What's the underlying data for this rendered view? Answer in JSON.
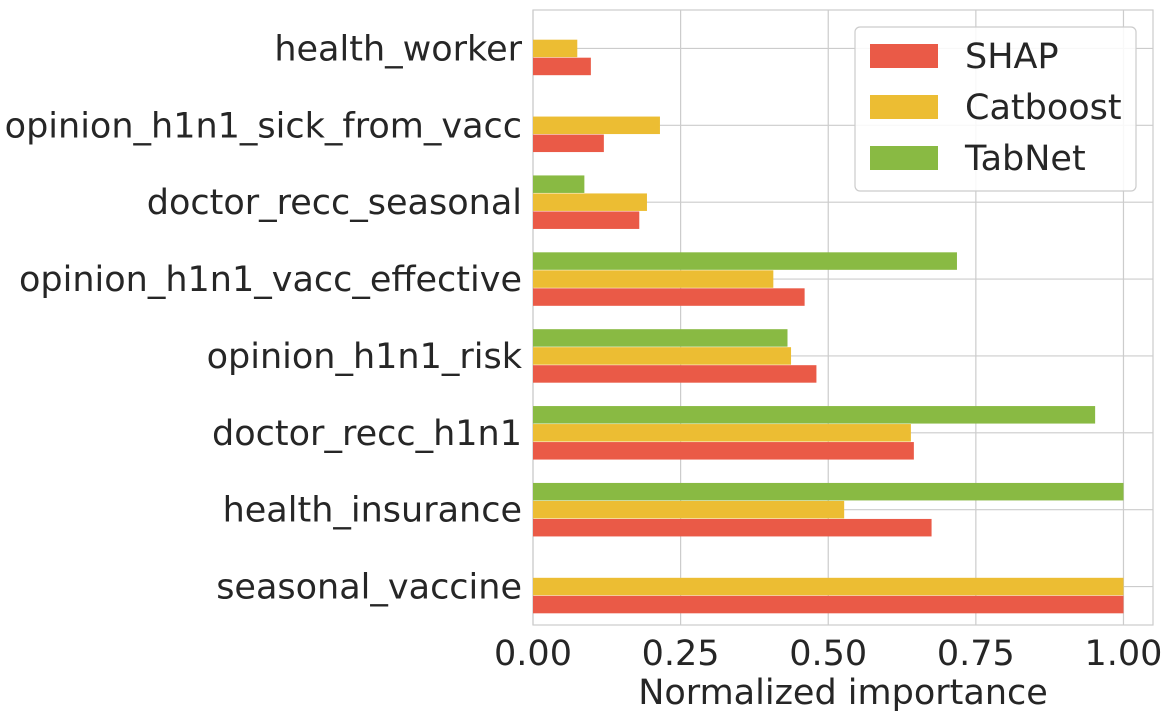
{
  "chart_data": {
    "type": "bar",
    "orientation": "horizontal",
    "categories": [
      "seasonal_vaccine",
      "health_insurance",
      "doctor_recc_h1n1",
      "opinion_h1n1_risk",
      "opinion_h1n1_vacc_effective",
      "doctor_recc_seasonal",
      "opinion_h1n1_sick_from_vacc",
      "health_worker"
    ],
    "series": [
      {
        "name": "SHAP",
        "color": "#ea5a47",
        "values": [
          1.0,
          0.675,
          0.645,
          0.48,
          0.46,
          0.18,
          0.12,
          0.098
        ]
      },
      {
        "name": "Catboost",
        "color": "#ecbd33",
        "values": [
          1.0,
          0.527,
          0.64,
          0.437,
          0.407,
          0.193,
          0.215,
          0.075
        ]
      },
      {
        "name": "TabNet",
        "color": "#89ba43",
        "values": [
          null,
          1.0,
          0.952,
          0.431,
          0.718,
          0.087,
          null,
          null
        ]
      }
    ],
    "xlabel": "Normalized importance",
    "ylabel": "",
    "title": "",
    "xlim": [
      0.0,
      1.05
    ],
    "xticks": [
      "0.00",
      "0.25",
      "0.50",
      "0.75",
      "1.00"
    ],
    "grid": true,
    "legend_position": "top-right"
  }
}
